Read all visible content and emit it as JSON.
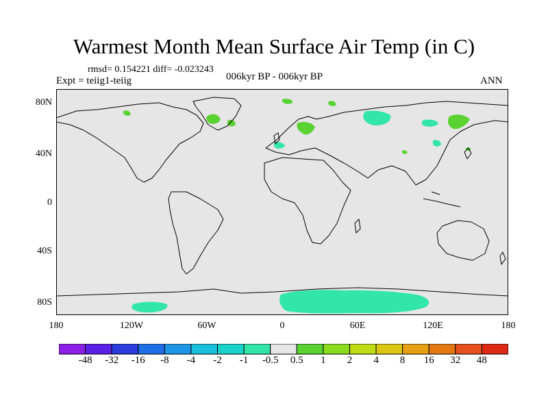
{
  "title": "Warmest Month Mean Surface Air Temp (in C)",
  "stats": "rmsd= 0.154221 diff= -0.023243",
  "experiment": "Expt = teiig1-teiig",
  "period": "006kyr BP - 006kyr BP",
  "season": "ANN",
  "lat_labels": [
    "80N",
    "40N",
    "0",
    "40S",
    "80S"
  ],
  "lon_labels": [
    "180",
    "120W",
    "60W",
    "0",
    "60E",
    "120E",
    "180"
  ],
  "colorbar": {
    "labels": [
      "-48",
      "-32",
      "-16",
      "-8",
      "-4",
      "-2",
      "-1",
      "-0.5",
      "0.5",
      "1",
      "2",
      "4",
      "8",
      "16",
      "32",
      "48"
    ],
    "colors": [
      "#8c1fe6",
      "#5a1fe6",
      "#2a3cdc",
      "#1e6ee6",
      "#1e96e6",
      "#19bedc",
      "#19d2c8",
      "#32e6aa",
      "#e6e6e6",
      "#5ad232",
      "#8cdc1e",
      "#bedc14",
      "#dcc814",
      "#e6a014",
      "#e67814",
      "#e6501e",
      "#dc2814"
    ]
  },
  "colors": {
    "background": "#e6e6e6",
    "neg_small": "#32e6aa",
    "pos_small": "#5ad232",
    "coast": "#000000"
  }
}
